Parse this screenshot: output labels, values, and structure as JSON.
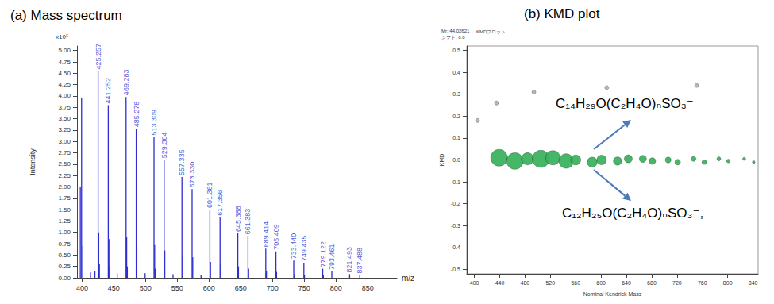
{
  "chart_data": [
    {
      "type": "bar",
      "title": "(a) Mass spectrum",
      "x_label": "m/z",
      "y_label": "Intensity",
      "y_unit_label": "x10⁵",
      "color": "#2d2dd2",
      "grid": false,
      "x": [
        397.2,
        399.2,
        401.2,
        413.2,
        420.2,
        425.257,
        426.26,
        427.26,
        441.252,
        442.25,
        443.25,
        455.3,
        469.283,
        470.28,
        471.29,
        485.278,
        486.28,
        499.3,
        513.309,
        514.31,
        515.31,
        529.304,
        530.3,
        543.3,
        557.335,
        558.34,
        573.33,
        574.33,
        587.4,
        601.361,
        602.36,
        617.356,
        618.36,
        645.388,
        646.39,
        661.383,
        662.38,
        689.414,
        690.41,
        705.409,
        706.41,
        733.44,
        734.44,
        749.435,
        750.44,
        778.1,
        779.122,
        780.12,
        793.461,
        821.493,
        837.488
      ],
      "values": [
        2.0,
        3.95,
        0.7,
        0.12,
        0.15,
        4.55,
        1.0,
        0.3,
        3.8,
        0.85,
        0.25,
        0.1,
        3.98,
        0.9,
        0.25,
        3.28,
        0.7,
        0.1,
        3.1,
        0.72,
        0.2,
        2.6,
        0.6,
        0.08,
        2.22,
        0.5,
        1.95,
        0.45,
        0.06,
        1.5,
        0.35,
        1.33,
        0.3,
        0.98,
        0.25,
        0.92,
        0.2,
        0.64,
        0.15,
        0.58,
        0.13,
        0.38,
        0.08,
        0.33,
        0.07,
        0.12,
        0.2,
        0.06,
        0.14,
        0.08,
        0.06
      ],
      "annotations": [
        {
          "text": "425.257",
          "x": 425.257,
          "y": 4.55
        },
        {
          "text": "441.252",
          "x": 441.252,
          "y": 3.8
        },
        {
          "text": "469.283",
          "x": 469.283,
          "y": 3.98
        },
        {
          "text": "485.278",
          "x": 485.278,
          "y": 3.28
        },
        {
          "text": "513.309",
          "x": 513.309,
          "y": 3.1
        },
        {
          "text": "529.304",
          "x": 529.304,
          "y": 2.6
        },
        {
          "text": "557.335",
          "x": 557.335,
          "y": 2.22
        },
        {
          "text": "573.330",
          "x": 573.33,
          "y": 1.95
        },
        {
          "text": "601.361",
          "x": 601.361,
          "y": 1.5
        },
        {
          "text": "617.356",
          "x": 617.356,
          "y": 1.33
        },
        {
          "text": "645.388",
          "x": 645.388,
          "y": 0.98
        },
        {
          "text": "661.383",
          "x": 661.383,
          "y": 0.92
        },
        {
          "text": "689.414",
          "x": 689.414,
          "y": 0.64
        },
        {
          "text": "705.409",
          "x": 705.409,
          "y": 0.58
        },
        {
          "text": "733.440",
          "x": 733.44,
          "y": 0.38
        },
        {
          "text": "749.435",
          "x": 749.435,
          "y": 0.33
        },
        {
          "text": "779.122",
          "x": 779.122,
          "y": 0.2
        },
        {
          "text": "793.461",
          "x": 793.461,
          "y": 0.14
        },
        {
          "text": "821.493",
          "x": 821.493,
          "y": 0.08
        },
        {
          "text": "837.488",
          "x": 837.488,
          "y": 0.06
        }
      ],
      "xlim": [
        392,
        896
      ],
      "ylim": [
        0,
        5.1
      ],
      "xticks": [
        400,
        450,
        500,
        550,
        600,
        650,
        700,
        750,
        800,
        850
      ],
      "yticks": [
        {
          "value": 0,
          "label": "0.00"
        },
        {
          "value": 0.25,
          "label": "0.25"
        },
        {
          "value": 0.5,
          "label": "0.50"
        },
        {
          "value": 0.75,
          "label": "0.75"
        },
        {
          "value": 1,
          "label": "1.00"
        },
        {
          "value": 1.25,
          "label": "1.25"
        },
        {
          "value": 1.5,
          "label": "1.50"
        },
        {
          "value": 1.75,
          "label": "1.75"
        },
        {
          "value": 2,
          "label": "2.00"
        },
        {
          "value": 2.25,
          "label": "2.25"
        },
        {
          "value": 2.5,
          "label": "2.50"
        },
        {
          "value": 2.75,
          "label": "2.75"
        },
        {
          "value": 3,
          "label": "3.00"
        },
        {
          "value": 3.25,
          "label": "3.25"
        },
        {
          "value": 3.5,
          "label": "3.50"
        },
        {
          "value": 3.75,
          "label": "3.75"
        },
        {
          "value": 4,
          "label": "4.00"
        },
        {
          "value": 4.25,
          "label": "4.25"
        },
        {
          "value": 4.5,
          "label": "4.50"
        },
        {
          "value": 4.75,
          "label": "4.75"
        },
        {
          "value": 5,
          "label": "5.00"
        }
      ]
    },
    {
      "type": "scatter",
      "title": "(b) KMD plot",
      "header_texts": [
        "Mr: 44.02621",
        "シフト: 0.0"
      ],
      "tab_label": "KMDプロット",
      "x_label": "Nominal Kendrick Mass",
      "y_label": "KMD",
      "grid": false,
      "series": [
        {
          "color": "#3cb35f",
          "marker": "circle",
          "x": [
            439,
            464,
            484,
            505,
            524,
            545,
            560,
            586,
            601,
            626,
            643,
            666,
            681,
            706,
            721,
            746,
            763,
            786,
            801,
            826,
            841
          ],
          "values": [
            0.01,
            -0.005,
            0.005,
            0.005,
            0.01,
            -0.005,
            0.0,
            -0.01,
            0.0,
            -0.005,
            0.005,
            0.005,
            -0.005,
            0.0,
            -0.01,
            0.005,
            -0.01,
            0.005,
            -0.005,
            0.005,
            -0.01
          ],
          "sizes": [
            4.5,
            4.4,
            2.4,
            4.7,
            3.3,
            3.4,
            1.6,
            1.6,
            1.5,
            1.1,
            1.0,
            0.8,
            0.7,
            0.55,
            0.5,
            0.4,
            0.35,
            0.25,
            0.2,
            0.15,
            0.12
          ]
        },
        {
          "color": "#b4b4b4",
          "marker": "circle",
          "x": [
            405,
            435,
            494,
            609,
            751
          ],
          "values": [
            0.18,
            0.26,
            0.31,
            0.33,
            0.34
          ]
        }
      ],
      "annotations": [
        {
          "text": "C₁₄H₂₉O(C₂H₄O)ₙSO₃⁻"
        },
        {
          "text": "C₁₂H₂₅O(C₂H₄O)ₙSO₃⁻,"
        }
      ],
      "xlim": [
        388,
        848
      ],
      "ylim": [
        -0.52,
        0.52
      ],
      "xticks": [
        400,
        440,
        480,
        520,
        560,
        600,
        640,
        680,
        720,
        760,
        800,
        840
      ],
      "yticks": [
        -0.5,
        -0.4,
        -0.3,
        -0.2,
        -0.1,
        {
          "value": 0,
          "label": "0.0"
        },
        0.1,
        0.2,
        0.3,
        0.4,
        0.5
      ]
    }
  ]
}
